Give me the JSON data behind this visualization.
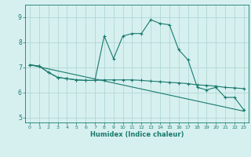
{
  "title": "",
  "xlabel": "Humidex (Indice chaleur)",
  "ylabel": "",
  "background_color": "#d6f0ef",
  "line_color": "#1a7a6e",
  "grid_color": "#b0d8d4",
  "xlim": [
    -0.5,
    23.5
  ],
  "ylim": [
    4.8,
    9.5
  ],
  "xticks": [
    0,
    1,
    2,
    3,
    4,
    5,
    6,
    7,
    8,
    9,
    10,
    11,
    12,
    13,
    14,
    15,
    16,
    17,
    18,
    19,
    20,
    21,
    22,
    23
  ],
  "yticks": [
    5,
    6,
    7,
    8,
    9
  ],
  "line1_x": [
    0,
    1,
    2,
    3,
    4,
    5,
    6,
    7,
    8,
    9,
    10,
    11,
    12,
    13,
    14,
    15,
    16,
    17,
    18,
    19,
    20,
    21,
    22,
    23
  ],
  "line1_y": [
    7.1,
    7.05,
    6.8,
    6.6,
    6.55,
    6.5,
    6.48,
    6.48,
    8.25,
    7.35,
    8.25,
    8.35,
    8.35,
    8.9,
    8.75,
    8.7,
    7.7,
    7.3,
    6.2,
    6.1,
    6.2,
    5.8,
    5.8,
    5.3
  ],
  "line2_x": [
    0,
    1,
    2,
    3,
    4,
    5,
    6,
    7,
    8,
    9,
    10,
    11,
    12,
    13,
    14,
    15,
    16,
    17,
    18,
    19,
    20,
    21,
    22,
    23
  ],
  "line2_y": [
    7.1,
    7.05,
    6.8,
    6.6,
    6.55,
    6.5,
    6.48,
    6.48,
    6.5,
    6.5,
    6.5,
    6.5,
    6.48,
    6.45,
    6.43,
    6.4,
    6.38,
    6.35,
    6.3,
    6.28,
    6.25,
    6.2,
    6.18,
    6.15
  ],
  "line3_x": [
    0,
    23
  ],
  "line3_y": [
    7.1,
    5.25
  ]
}
